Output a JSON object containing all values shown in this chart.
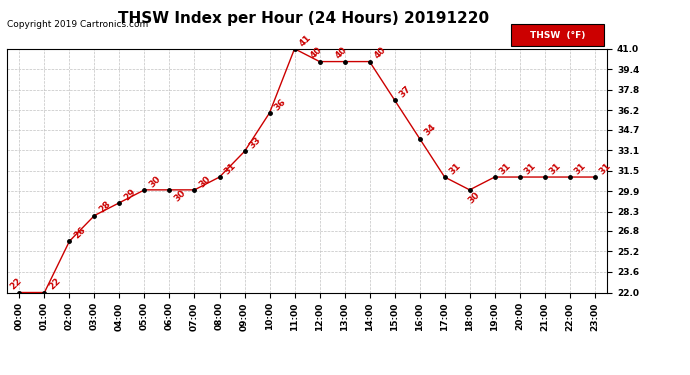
{
  "title": "THSW Index per Hour (24 Hours) 20191220",
  "copyright": "Copyright 2019 Cartronics.com",
  "legend_label": "THSW  (°F)",
  "hours": [
    0,
    1,
    2,
    3,
    4,
    5,
    6,
    7,
    8,
    9,
    10,
    11,
    12,
    13,
    14,
    15,
    16,
    17,
    18,
    19,
    20,
    21,
    22,
    23
  ],
  "values": [
    22,
    22,
    26,
    28,
    29,
    30,
    30,
    30,
    31,
    33,
    36,
    41,
    40,
    40,
    40,
    37,
    34,
    31,
    30,
    31,
    31,
    31,
    31,
    31
  ],
  "x_labels": [
    "00:00",
    "01:00",
    "02:00",
    "03:00",
    "04:00",
    "05:00",
    "06:00",
    "07:00",
    "08:00",
    "09:00",
    "10:00",
    "11:00",
    "12:00",
    "13:00",
    "14:00",
    "15:00",
    "16:00",
    "17:00",
    "18:00",
    "19:00",
    "20:00",
    "21:00",
    "22:00",
    "23:00"
  ],
  "y_ticks": [
    22.0,
    23.6,
    25.2,
    26.8,
    28.3,
    29.9,
    31.5,
    33.1,
    34.7,
    36.2,
    37.8,
    39.4,
    41.0
  ],
  "ylim_min": 22.0,
  "ylim_max": 41.0,
  "line_color": "#cc0000",
  "marker_color": "#000000",
  "label_color": "#cc0000",
  "background_color": "#ffffff",
  "grid_color": "#bbbbbb",
  "legend_bg": "#cc0000",
  "legend_text_color": "#ffffff",
  "title_fontsize": 11,
  "label_fontsize": 6.5,
  "tick_fontsize": 6.5,
  "copyright_fontsize": 6.5
}
